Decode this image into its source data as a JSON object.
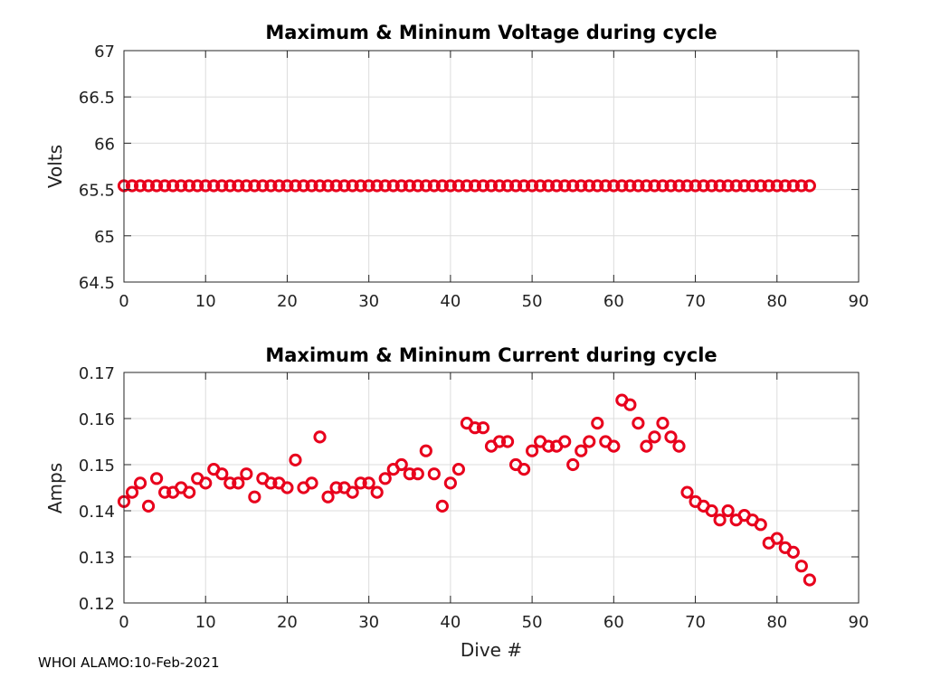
{
  "footer": "WHOI ALAMO:10-Feb-2021",
  "colors": {
    "marker": "#e8001c",
    "grid": "#dcdcdc",
    "axis": "#262626"
  },
  "chart_data": [
    {
      "type": "scatter",
      "title": "Maximum & Mininum Voltage during cycle",
      "xlabel": "",
      "ylabel": "Volts",
      "xlim": [
        0,
        90
      ],
      "ylim": [
        64.5,
        67
      ],
      "xticks": [
        0,
        10,
        20,
        30,
        40,
        50,
        60,
        70,
        80,
        90
      ],
      "yticks": [
        64.5,
        65,
        65.5,
        66,
        66.5,
        67
      ],
      "ytick_labels": [
        "64.5",
        "65",
        "65.5",
        "66",
        "66.5",
        "67"
      ],
      "grid": true,
      "x": [
        0,
        1,
        2,
        3,
        4,
        5,
        6,
        7,
        8,
        9,
        10,
        11,
        12,
        13,
        14,
        15,
        16,
        17,
        18,
        19,
        20,
        21,
        22,
        23,
        24,
        25,
        26,
        27,
        28,
        29,
        30,
        31,
        32,
        33,
        34,
        35,
        36,
        37,
        38,
        39,
        40,
        41,
        42,
        43,
        44,
        45,
        46,
        47,
        48,
        49,
        50,
        51,
        52,
        53,
        54,
        55,
        56,
        57,
        58,
        59,
        60,
        61,
        62,
        63,
        64,
        65,
        66,
        67,
        68,
        69,
        70,
        71,
        72,
        73,
        74,
        75,
        76,
        77,
        78,
        79,
        80,
        81,
        82,
        83,
        84
      ],
      "y": [
        65.54,
        65.54,
        65.54,
        65.54,
        65.54,
        65.54,
        65.54,
        65.54,
        65.54,
        65.54,
        65.54,
        65.54,
        65.54,
        65.54,
        65.54,
        65.54,
        65.54,
        65.54,
        65.54,
        65.54,
        65.54,
        65.54,
        65.54,
        65.54,
        65.54,
        65.54,
        65.54,
        65.54,
        65.54,
        65.54,
        65.54,
        65.54,
        65.54,
        65.54,
        65.54,
        65.54,
        65.54,
        65.54,
        65.54,
        65.54,
        65.54,
        65.54,
        65.54,
        65.54,
        65.54,
        65.54,
        65.54,
        65.54,
        65.54,
        65.54,
        65.54,
        65.54,
        65.54,
        65.54,
        65.54,
        65.54,
        65.54,
        65.54,
        65.54,
        65.54,
        65.54,
        65.54,
        65.54,
        65.54,
        65.54,
        65.54,
        65.54,
        65.54,
        65.54,
        65.54,
        65.54,
        65.54,
        65.54,
        65.54,
        65.54,
        65.54,
        65.54,
        65.54,
        65.54,
        65.54,
        65.54,
        65.54,
        65.54,
        65.54,
        65.54
      ]
    },
    {
      "type": "scatter",
      "title": "Maximum & Mininum Current during cycle",
      "xlabel": "Dive #",
      "ylabel": "Amps",
      "xlim": [
        0,
        90
      ],
      "ylim": [
        0.12,
        0.17
      ],
      "xticks": [
        0,
        10,
        20,
        30,
        40,
        50,
        60,
        70,
        80,
        90
      ],
      "yticks": [
        0.12,
        0.13,
        0.14,
        0.15,
        0.16,
        0.17
      ],
      "ytick_labels": [
        "0.12",
        "0.13",
        "0.14",
        "0.15",
        "0.16",
        "0.17"
      ],
      "grid": true,
      "x": [
        0,
        1,
        2,
        3,
        4,
        5,
        6,
        7,
        8,
        9,
        10,
        11,
        12,
        13,
        14,
        15,
        16,
        17,
        18,
        19,
        20,
        21,
        22,
        23,
        24,
        25,
        26,
        27,
        28,
        29,
        30,
        31,
        32,
        33,
        34,
        35,
        36,
        37,
        38,
        39,
        40,
        41,
        42,
        43,
        44,
        45,
        46,
        47,
        48,
        49,
        50,
        51,
        52,
        53,
        54,
        55,
        56,
        57,
        58,
        59,
        60,
        61,
        62,
        63,
        64,
        65,
        66,
        67,
        68,
        69,
        70,
        71,
        72,
        73,
        74,
        75,
        76,
        77,
        78,
        79,
        80,
        81,
        82,
        83,
        84
      ],
      "y": [
        0.142,
        0.144,
        0.146,
        0.141,
        0.147,
        0.144,
        0.144,
        0.145,
        0.144,
        0.147,
        0.146,
        0.149,
        0.148,
        0.146,
        0.146,
        0.148,
        0.143,
        0.147,
        0.146,
        0.146,
        0.145,
        0.151,
        0.145,
        0.146,
        0.156,
        0.143,
        0.145,
        0.145,
        0.144,
        0.146,
        0.146,
        0.144,
        0.147,
        0.149,
        0.15,
        0.148,
        0.148,
        0.153,
        0.148,
        0.141,
        0.146,
        0.149,
        0.159,
        0.158,
        0.158,
        0.154,
        0.155,
        0.155,
        0.15,
        0.149,
        0.153,
        0.155,
        0.154,
        0.154,
        0.155,
        0.15,
        0.153,
        0.155,
        0.159,
        0.155,
        0.154,
        0.164,
        0.163,
        0.159,
        0.154,
        0.156,
        0.159,
        0.156,
        0.154,
        0.144,
        0.142,
        0.141,
        0.14,
        0.138,
        0.14,
        0.138,
        0.139,
        0.138,
        0.137,
        0.133,
        0.134,
        0.132,
        0.131,
        0.128,
        0.125
      ]
    }
  ]
}
